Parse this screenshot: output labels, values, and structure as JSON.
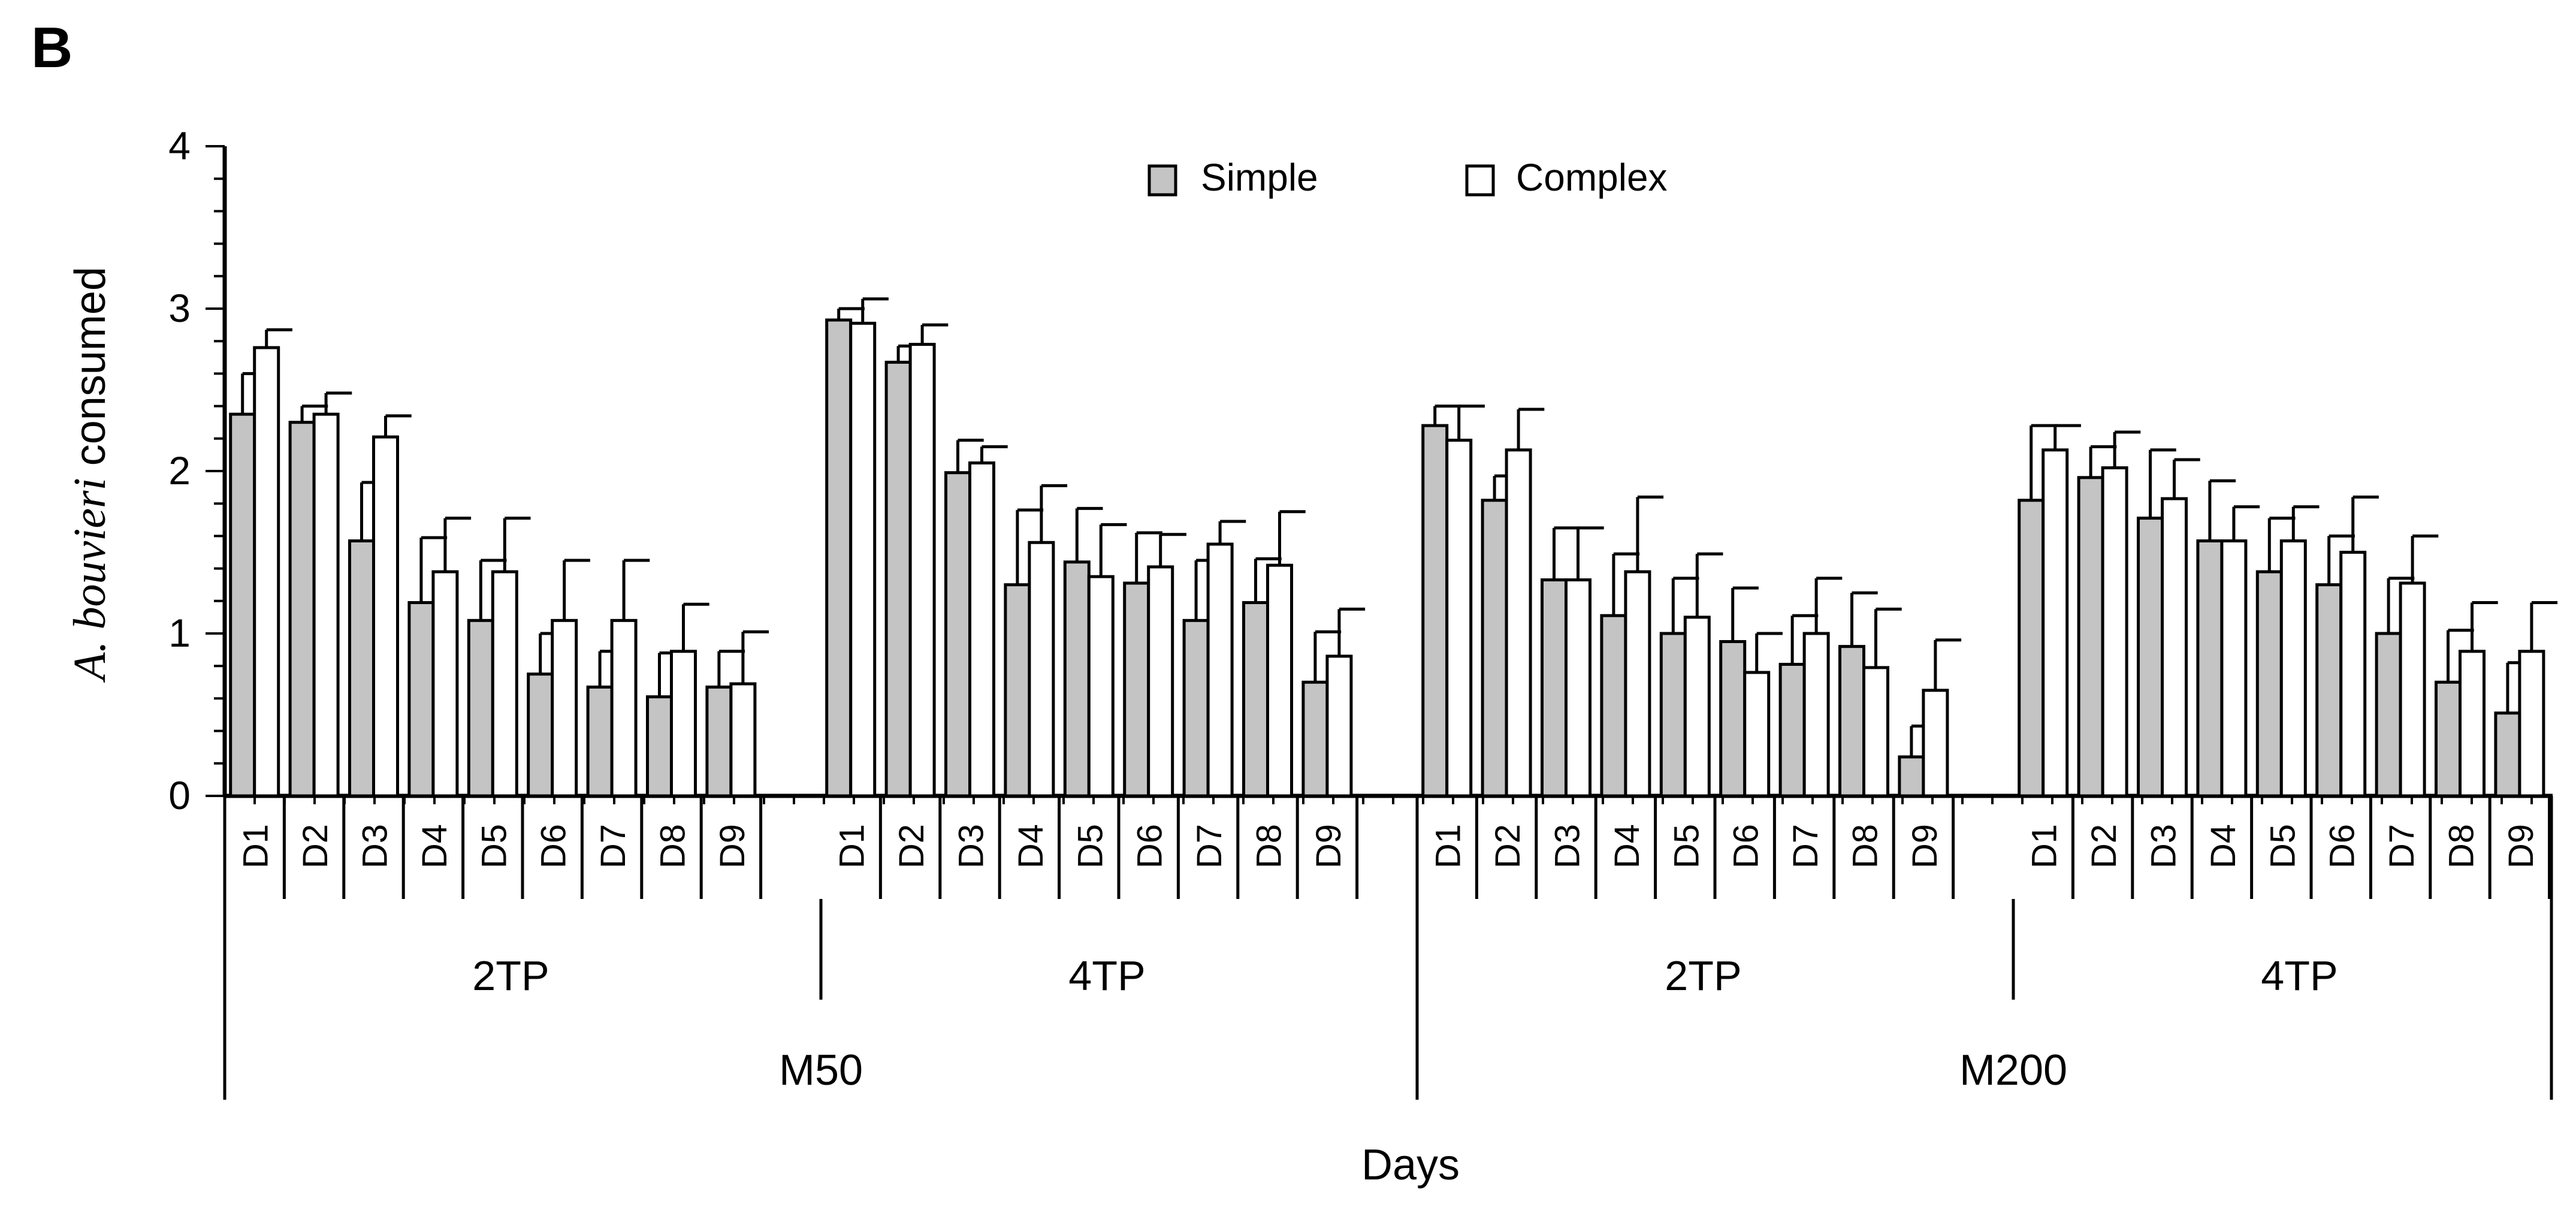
{
  "panel_label": "B",
  "chart_data": {
    "type": "bar",
    "title": "",
    "ylabel_italic": "A. bouvieri",
    "ylabel_rest": " consumed",
    "xlabel": "Days",
    "ylim": [
      0,
      4
    ],
    "yticks": [
      "0",
      "1",
      "2",
      "3",
      "4"
    ],
    "legend": {
      "position": "top-center",
      "entries": [
        "Simple",
        "Complex"
      ]
    },
    "colors": {
      "Simple": "#c4c4c4",
      "Complex": "#ffffff",
      "stroke": "#000000"
    },
    "days": [
      "D1",
      "D2",
      "D3",
      "D4",
      "D5",
      "D6",
      "D7",
      "D8",
      "D9"
    ],
    "groups": [
      {
        "name": "M50",
        "subgroups": [
          {
            "name": "2TP",
            "simple": [
              2.35,
              2.3,
              1.57,
              1.19,
              1.08,
              0.75,
              0.67,
              0.61,
              0.67
            ],
            "simple_err": [
              0.25,
              0.1,
              0.36,
              0.4,
              0.37,
              0.25,
              0.22,
              0.27,
              0.22
            ],
            "complex": [
              2.76,
              2.35,
              2.21,
              1.38,
              1.38,
              1.08,
              1.08,
              0.89,
              0.69
            ],
            "complex_err": [
              0.11,
              0.13,
              0.13,
              0.33,
              0.33,
              0.37,
              0.37,
              0.29,
              0.32
            ]
          },
          {
            "name": "4TP",
            "simple": [
              2.93,
              2.67,
              1.99,
              1.3,
              1.44,
              1.31,
              1.08,
              1.19,
              0.7
            ],
            "simple_err": [
              0.07,
              0.1,
              0.2,
              0.46,
              0.33,
              0.31,
              0.37,
              0.27,
              0.31
            ],
            "complex": [
              2.91,
              2.78,
              2.05,
              1.56,
              1.35,
              1.41,
              1.55,
              1.42,
              0.86
            ],
            "complex_err": [
              0.15,
              0.12,
              0.1,
              0.35,
              0.32,
              0.2,
              0.14,
              0.33,
              0.29
            ]
          }
        ]
      },
      {
        "name": "M200",
        "subgroups": [
          {
            "name": "2TP",
            "simple": [
              2.28,
              1.82,
              1.33,
              1.11,
              1.0,
              0.95,
              0.81,
              0.92,
              0.24
            ],
            "simple_err": [
              0.12,
              0.15,
              0.32,
              0.38,
              0.34,
              0.33,
              0.3,
              0.33,
              0.19
            ],
            "complex": [
              2.19,
              2.13,
              1.33,
              1.38,
              1.1,
              0.76,
              1.0,
              0.79,
              0.65
            ],
            "complex_err": [
              0.21,
              0.25,
              0.32,
              0.46,
              0.39,
              0.24,
              0.34,
              0.36,
              0.31
            ]
          },
          {
            "name": "4TP",
            "simple": [
              1.82,
              1.96,
              1.71,
              1.57,
              1.38,
              1.3,
              1.0,
              0.7,
              0.51
            ],
            "simple_err": [
              0.46,
              0.19,
              0.42,
              0.37,
              0.33,
              0.3,
              0.34,
              0.32,
              0.31
            ],
            "complex": [
              2.13,
              2.02,
              1.83,
              1.57,
              1.57,
              1.5,
              1.31,
              0.89,
              0.89
            ],
            "complex_err": [
              0.15,
              0.22,
              0.24,
              0.21,
              0.21,
              0.34,
              0.29,
              0.3,
              0.3
            ]
          }
        ]
      }
    ]
  }
}
